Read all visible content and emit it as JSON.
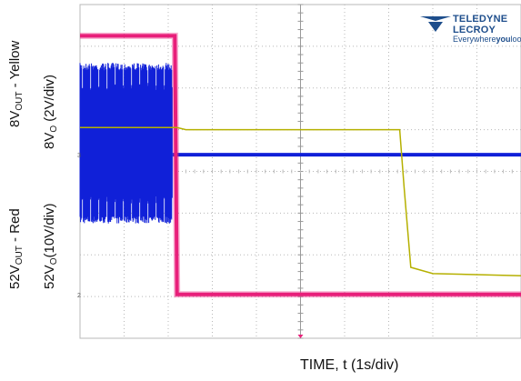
{
  "labels": {
    "yellow_prefix": "8V",
    "yellow_sub": "OUT",
    "yellow_suffix": " - Yellow",
    "scale8_prefix": "8V",
    "scale8_sub": "O",
    "scale8_suffix": " (2V/div)",
    "red_prefix": "52V",
    "red_sub": "OUT",
    "red_suffix": " - Red",
    "scale52_prefix": "52V",
    "scale52_sub": "O",
    "scale52_suffix": "(10V/div)",
    "xlabel": "TIME, t (1s/div)"
  },
  "logo": {
    "brand": "TELEDYNE LECROY",
    "tagline_a": "Everywhere",
    "tagline_b": "you",
    "tagline_c": "look"
  },
  "chart_data": {
    "type": "line",
    "xlabel": "TIME, t (1s/div)",
    "x_unit": "s",
    "xlim": [
      0,
      10
    ],
    "grid": true,
    "grid_divisions": {
      "horizontal": 10,
      "vertical": 8
    },
    "colors": {
      "yellow": "#b5b000",
      "red": "#e8207a",
      "blue": "#1020d8",
      "grid": "#b8b8b8"
    },
    "series": [
      {
        "name": "52VOUT - Red",
        "color": "red",
        "x": [
          0,
          2.15,
          2.2,
          10
        ],
        "y_div": [
          7.25,
          7.25,
          1.05,
          1.05
        ]
      },
      {
        "name": "8VOUT - Yellow",
        "color": "yellow",
        "x": [
          0,
          2.2,
          2.4,
          7.25,
          7.35,
          7.5,
          8.0,
          10
        ],
        "y_div": [
          5.05,
          5.05,
          5.0,
          5.0,
          3.6,
          1.7,
          1.55,
          1.5
        ]
      },
      {
        "color": "blue",
        "x_burst": [
          0,
          2.1
        ],
        "burst_range_div": [
          2.75,
          6.6
        ],
        "x": [
          2.1,
          10
        ],
        "y_div": [
          4.4,
          4.4
        ]
      }
    ]
  }
}
